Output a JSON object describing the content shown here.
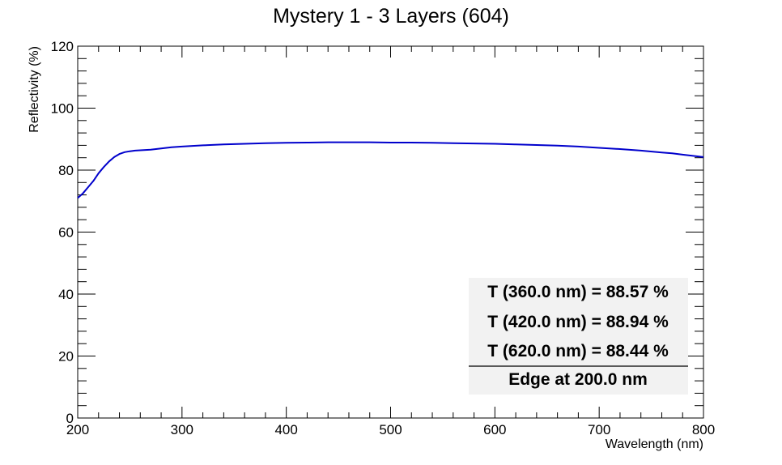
{
  "chart_data": {
    "type": "line",
    "title": "Mystery 1 - 3 Layers (604)",
    "xlabel": "Wavelength (nm)",
    "ylabel": "Reflectivity (%)",
    "xlim": [
      200,
      800
    ],
    "ylim": [
      0,
      120
    ],
    "x_ticks": [
      "200",
      "300",
      "400",
      "500",
      "600",
      "700",
      "800"
    ],
    "y_ticks": [
      "0",
      "20",
      "40",
      "60",
      "80",
      "100",
      "120"
    ],
    "grid": false,
    "series": [
      {
        "color": "#0000cc",
        "x": [
          200,
          205,
          210,
          215,
          220,
          225,
          230,
          235,
          240,
          245,
          250,
          255,
          260,
          270,
          280,
          290,
          300,
          320,
          340,
          360,
          380,
          400,
          420,
          440,
          460,
          480,
          500,
          520,
          540,
          560,
          580,
          600,
          620,
          640,
          660,
          680,
          700,
          720,
          740,
          760,
          770,
          780,
          790,
          800
        ],
        "y": [
          71.0,
          72.5,
          74.5,
          76.5,
          79.0,
          81.0,
          82.8,
          84.2,
          85.2,
          85.8,
          86.1,
          86.3,
          86.4,
          86.6,
          87.0,
          87.4,
          87.6,
          88.0,
          88.3,
          88.5,
          88.7,
          88.8,
          88.9,
          89.0,
          89.0,
          89.0,
          88.9,
          88.9,
          88.8,
          88.7,
          88.6,
          88.5,
          88.3,
          88.1,
          87.9,
          87.6,
          87.2,
          86.8,
          86.3,
          85.7,
          85.4,
          85.0,
          84.6,
          84.2
        ]
      }
    ],
    "legend_box": {
      "position": "bottom-right",
      "entries": [
        "T (360.0 nm) = 88.57 %",
        "T (420.0 nm) = 88.94 %",
        "T (620.0 nm) = 88.44 %"
      ],
      "footer": "Edge at 200.0 nm"
    }
  }
}
